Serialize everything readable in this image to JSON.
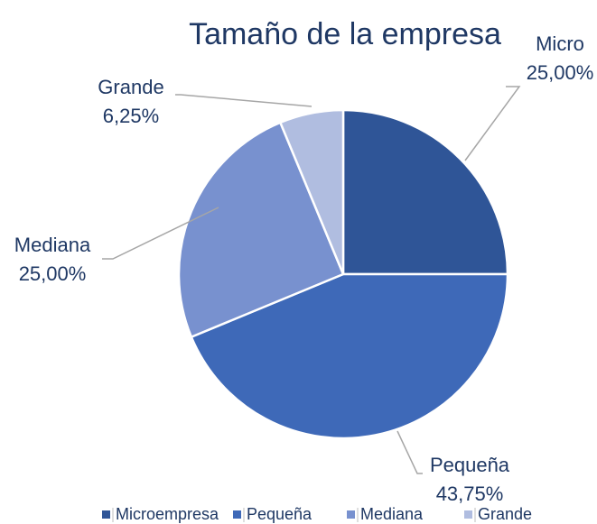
{
  "chart_data": {
    "type": "pie",
    "title": "Tamaño de la empresa",
    "categories": [
      "Microempresa",
      "Pequeña",
      "Mediana",
      "Grande"
    ],
    "label_names": [
      "Micro",
      "Pequeña",
      "Mediana",
      "Grande"
    ],
    "values": [
      25,
      43.75,
      25,
      6.25
    ],
    "value_labels": [
      "25,00%",
      "43,75%",
      "25,00%",
      "6,25%"
    ],
    "colors": [
      "#2f5597",
      "#3e69b8",
      "#7891cf",
      "#b0bde0"
    ],
    "legend": "bottom"
  }
}
